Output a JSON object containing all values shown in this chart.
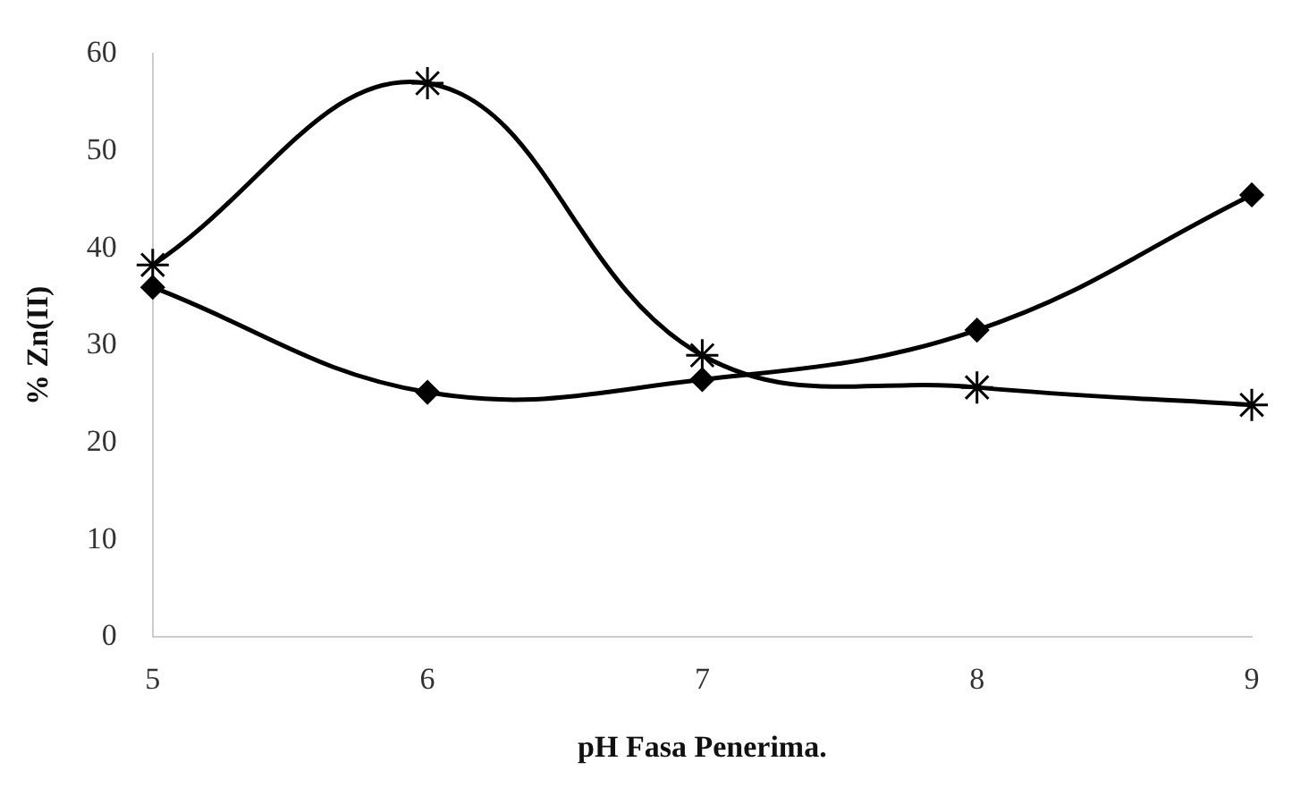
{
  "chart_data": {
    "type": "line",
    "xlabel": "pH Fasa Penerima.",
    "ylabel": "% Zn(II)",
    "categories": [
      "5",
      "6",
      "7",
      "8",
      "9"
    ],
    "series": [
      {
        "color": "#000000",
        "marker": "diamond",
        "values": [
          36,
          25.2,
          26.5,
          31.6,
          45.5
        ]
      },
      {
        "color": "#000000",
        "marker": "cross",
        "values": [
          38.3,
          57,
          29,
          25.7,
          23.9
        ]
      }
    ],
    "ylim": [
      0,
      60
    ],
    "yticks": [
      0,
      10,
      20,
      30,
      40,
      50,
      60
    ],
    "grid": false,
    "legend": false
  }
}
